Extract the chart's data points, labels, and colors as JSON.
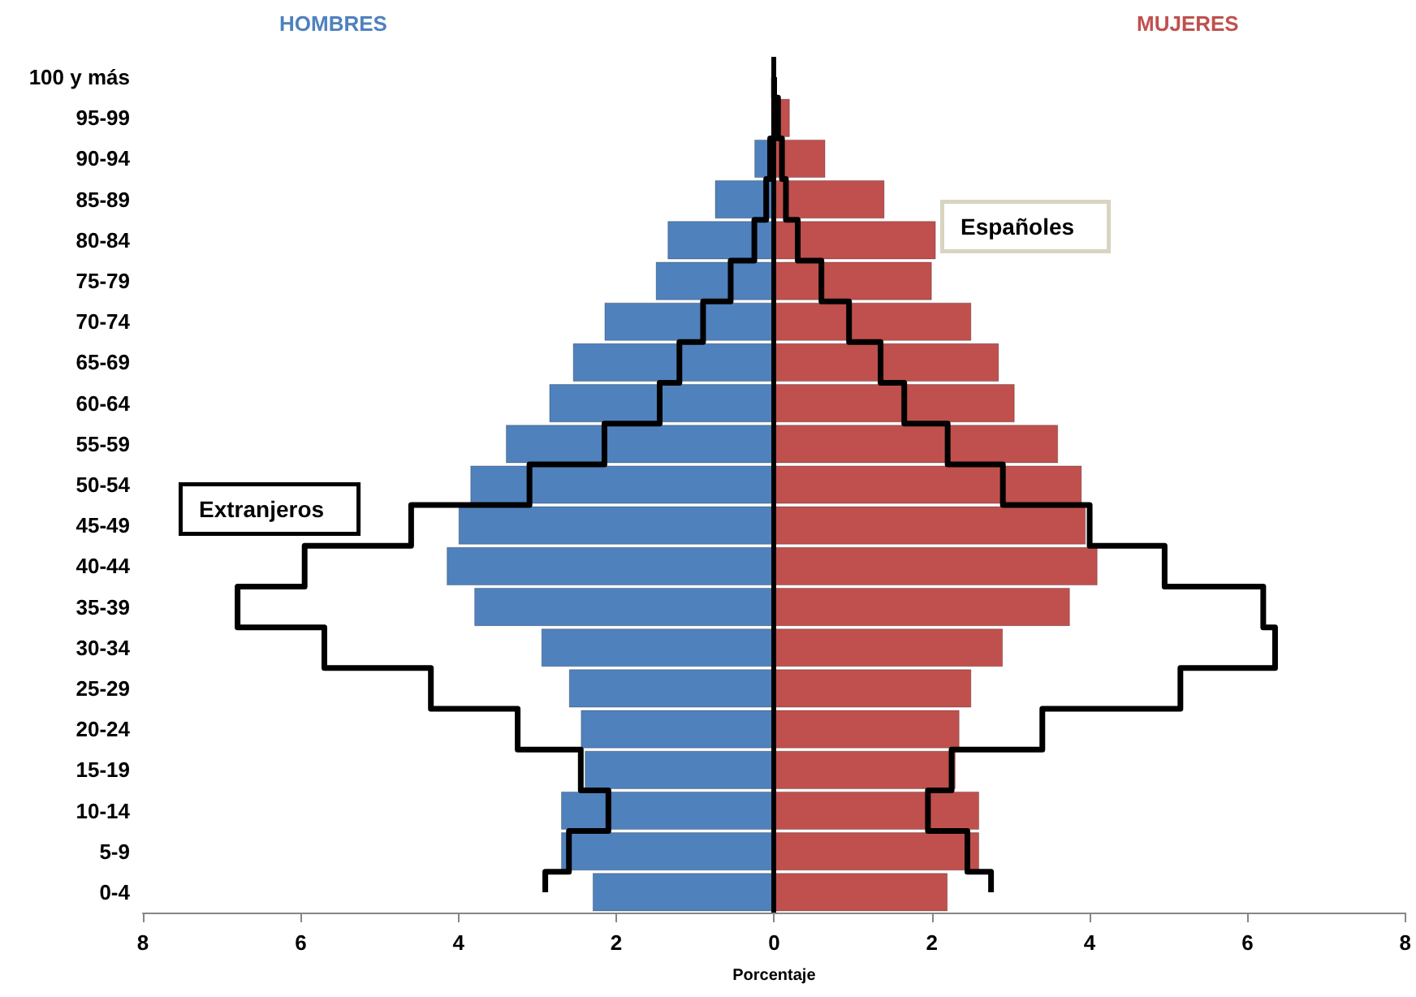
{
  "chart_data": {
    "type": "bar",
    "orientation": "horizontal",
    "stacked": true,
    "xlabel": "Porcentaje",
    "categories": [
      "100 y más",
      "95-99",
      "90-94",
      "85-89",
      "80-84",
      "75-79",
      "70-74",
      "65-69",
      "60-64",
      "55-59",
      "50-54",
      "45-49",
      "40-44",
      "35-39",
      "30-34",
      "25-29",
      "20-24",
      "15-19",
      "10-14",
      "5-9",
      "0-4"
    ],
    "series": [
      {
        "name": "HOMBRES",
        "color": "#4f81bd",
        "values": [
          null,
          null,
          -0.25,
          -0.75,
          -1.35,
          -1.5,
          -2.15,
          -2.55,
          -2.85,
          -3.4,
          -3.85,
          -4.0,
          -4.15,
          -3.8,
          -2.95,
          -2.6,
          -2.45,
          -2.4,
          -2.7,
          -2.7,
          -2.3
        ]
      },
      {
        "name": "MUJERES",
        "color": "#c0504d",
        "values": [
          0.02,
          0.2,
          0.65,
          1.4,
          2.05,
          2.0,
          2.5,
          2.85,
          3.05,
          3.6,
          3.9,
          3.95,
          4.1,
          3.75,
          2.9,
          2.5,
          2.35,
          2.3,
          2.6,
          2.6,
          2.2
        ]
      },
      {
        "type": "step",
        "color": "#000000",
        "values": [
          0,
          0,
          -0.05,
          -0.1,
          -0.25,
          -0.55,
          -0.9,
          -1.2,
          -1.45,
          -2.15,
          -3.1,
          -4.6,
          -5.95,
          -6.8,
          -5.7,
          -4.35,
          -3.25,
          -2.45,
          -2.1,
          -2.6,
          -2.9
        ]
      },
      {
        "type": "step",
        "color": "#000000",
        "values": [
          0,
          0.05,
          0.1,
          0.15,
          0.3,
          0.6,
          0.95,
          1.35,
          1.65,
          2.2,
          2.9,
          4.0,
          4.95,
          6.2,
          6.35,
          5.15,
          3.4,
          2.25,
          1.95,
          2.45,
          2.75
        ]
      }
    ],
    "xlim": [
      -8,
      8
    ],
    "xticks": [
      {
        "value": -8,
        "label": "8"
      },
      {
        "value": -6,
        "label": "6"
      },
      {
        "value": -4,
        "label": "4"
      },
      {
        "value": -2,
        "label": "2"
      },
      0,
      2,
      4,
      6,
      8
    ],
    "ref_lines": [
      {
        "axis": "x",
        "value": 0,
        "color": "#000000"
      }
    ],
    "annotations": [
      "Extranjeros",
      "Españoles"
    ],
    "marker": "none",
    "grid": false,
    "legend": false
  }
}
